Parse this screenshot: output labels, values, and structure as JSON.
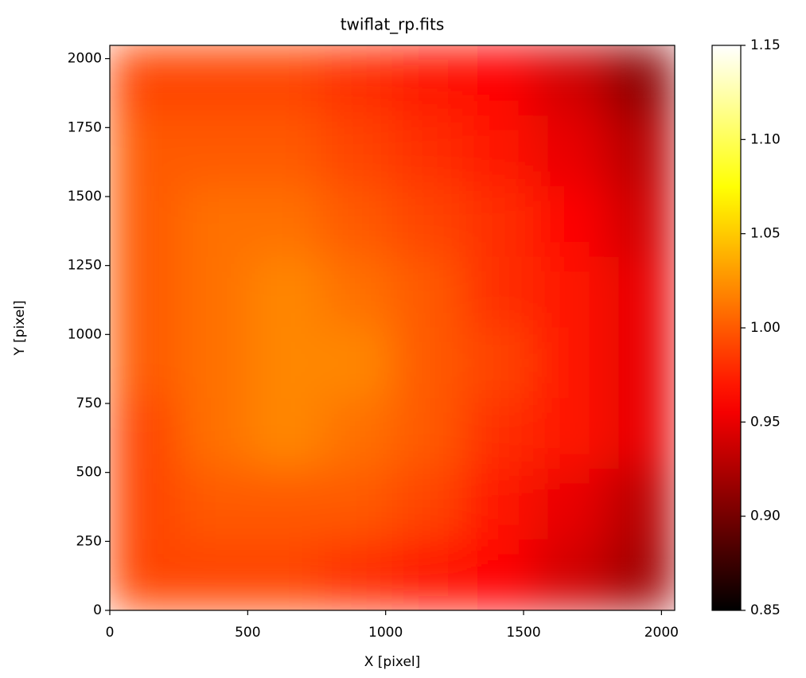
{
  "chart_data": {
    "type": "heatmap",
    "title": "twiflat_rp.fits",
    "x_label": "X [pixel]",
    "y_label": "Y [pixel]",
    "xlim": [
      0,
      2048
    ],
    "ylim": [
      0,
      2048
    ],
    "xticks": [
      0,
      500,
      1000,
      1500,
      2000
    ],
    "yticks": [
      0,
      250,
      500,
      750,
      1000,
      1250,
      1500,
      1750,
      2000
    ],
    "colormap": "hot",
    "clim": [
      0.85,
      1.15
    ],
    "colorbar_ticks": [
      0.85,
      {
        "value": 0.9,
        "label": "0.90"
      },
      0.95,
      {
        "value": 1.0,
        "label": "1.00"
      },
      1.05,
      {
        "value": 1.1,
        "label": "1.10"
      },
      1.15
    ],
    "z": [
      [
        0.99,
        0.99,
        0.99,
        0.98,
        0.97,
        0.96,
        0.94,
        0.91
      ],
      [
        1.0,
        1.0,
        1.0,
        0.99,
        0.98,
        0.97,
        0.95,
        0.93
      ],
      [
        1.0,
        1.01,
        1.01,
        1.0,
        0.99,
        0.98,
        0.96,
        0.94
      ],
      [
        1.0,
        1.01,
        1.02,
        1.01,
        1.0,
        0.98,
        0.97,
        0.95
      ],
      [
        1.0,
        1.01,
        1.02,
        1.02,
        1.0,
        0.99,
        0.97,
        0.95
      ],
      [
        0.99,
        1.01,
        1.02,
        1.01,
        1.0,
        0.98,
        0.97,
        0.95
      ],
      [
        0.99,
        1.0,
        1.0,
        1.0,
        0.99,
        0.97,
        0.95,
        0.93
      ],
      [
        0.99,
        0.99,
        0.99,
        0.98,
        0.97,
        0.96,
        0.94,
        0.92
      ]
    ]
  }
}
